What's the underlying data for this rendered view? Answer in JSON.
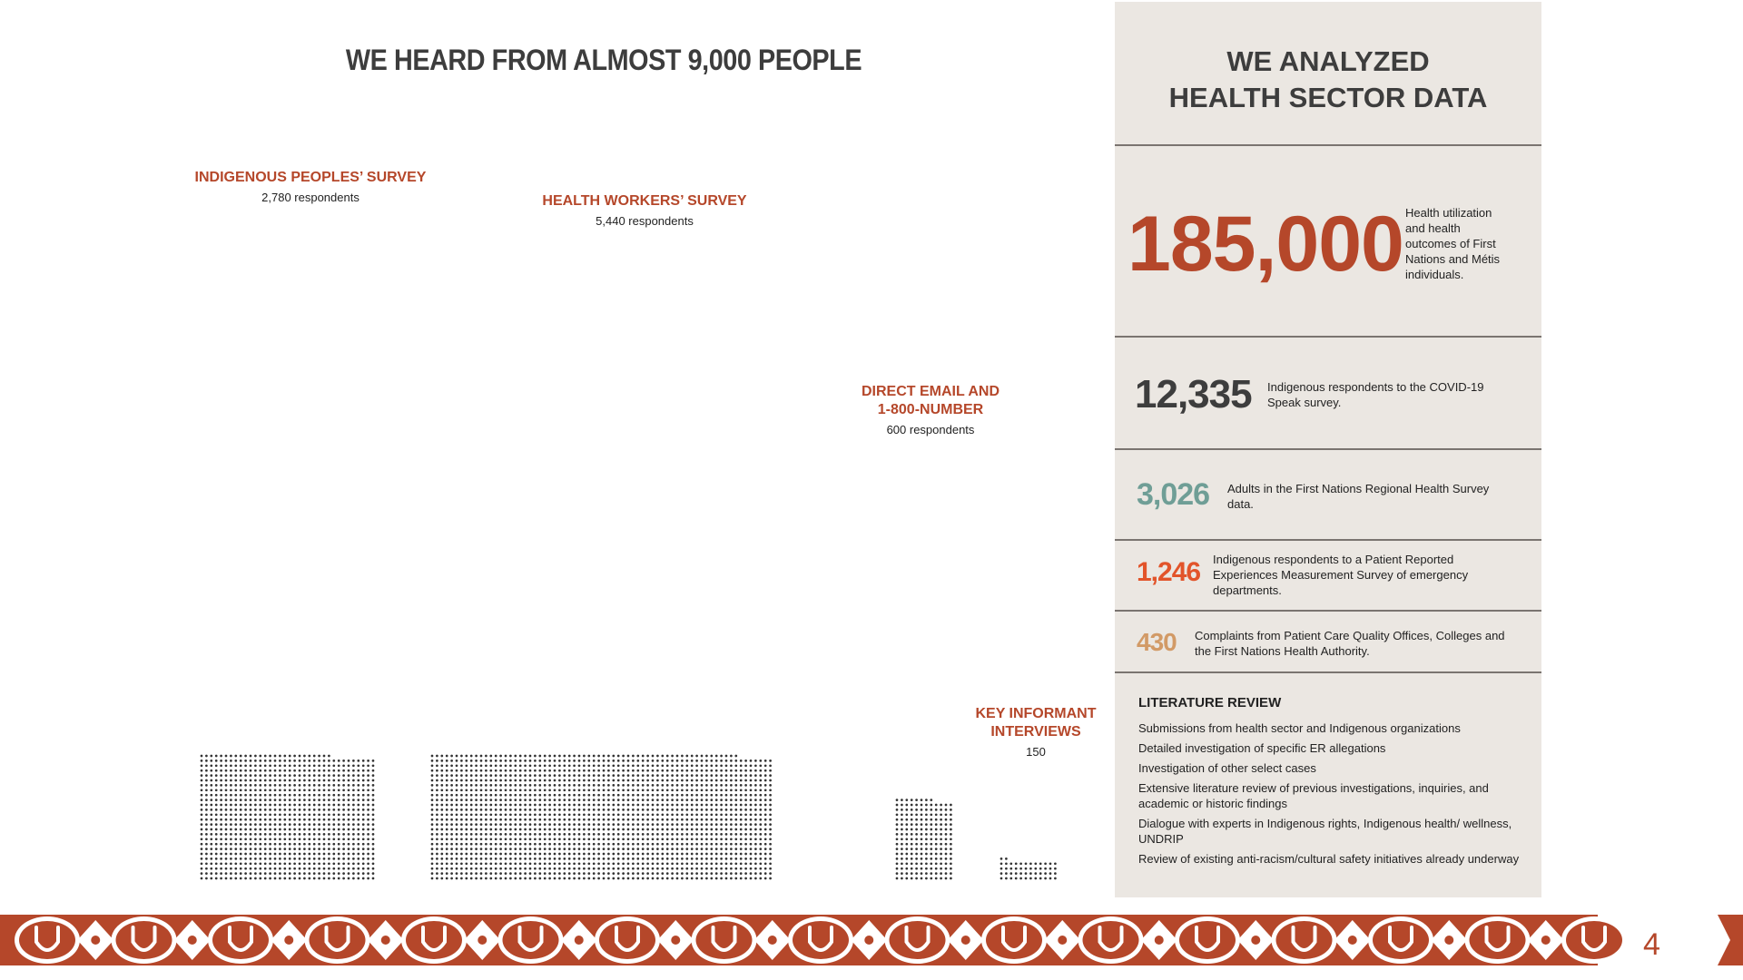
{
  "title": "WE HEARD FROM ALMOST 9,000 PEOPLE",
  "chart_data": {
    "type": "dot-matrix",
    "unit": "respondents",
    "groups": [
      {
        "name": "INDIGENOUS PEOPLES’ SURVEY",
        "label_count": "2,780 respondents",
        "value": 2780
      },
      {
        "name": "HEALTH WORKERS’ SURVEY",
        "label_count": "5,440 respondents",
        "value": 5440
      },
      {
        "name_lines": [
          "DIRECT EMAIL AND",
          "1-800-NUMBER"
        ],
        "label_count": "600 respondents",
        "value": 600
      },
      {
        "name_lines": [
          "KEY INFORMANT",
          "INTERVIEWS"
        ],
        "label_count": "150",
        "value": 150
      }
    ]
  },
  "panel": {
    "title_lines": [
      "WE ANALYZED",
      "HEALTH SECTOR DATA"
    ],
    "stats": [
      {
        "value": "185,000",
        "color": "#b5472a",
        "desc": "Health utilization and health outcomes of First Nations and Métis individuals."
      },
      {
        "value": "12,335",
        "color": "#3d3d3d",
        "desc": "Indigenous respondents to the COVID-19 Speak survey."
      },
      {
        "value": "3,026",
        "color": "#6f9e96",
        "desc": "Adults in the First Nations Regional Health Survey data."
      },
      {
        "value": "1,246",
        "color": "#e2542a",
        "desc": "Indigenous respondents to a Patient Reported Experiences Measurement Survey of emergency departments."
      },
      {
        "value": "430",
        "color": "#d29a66",
        "desc": "Complaints from Patient Care Quality Offices, Colleges and the First Nations Health Authority."
      }
    ],
    "literature_review": {
      "title": "LITERATURE REVIEW",
      "items": [
        "Submissions from health sector and Indigenous organizations",
        "Detailed investigation of specific ER allegations",
        "Investigation of other select cases",
        "Extensive literature review of previous investigations, inquiries, and academic or historic findings",
        "Dialogue with experts in Indigenous rights, Indigenous health/ wellness, UNDRIP",
        "Review of existing anti-racism/cultural safety initiatives already underway"
      ]
    }
  },
  "page_number": "4",
  "colors": {
    "accent": "#b5472a",
    "panel_bg": "#ebe7e2"
  }
}
